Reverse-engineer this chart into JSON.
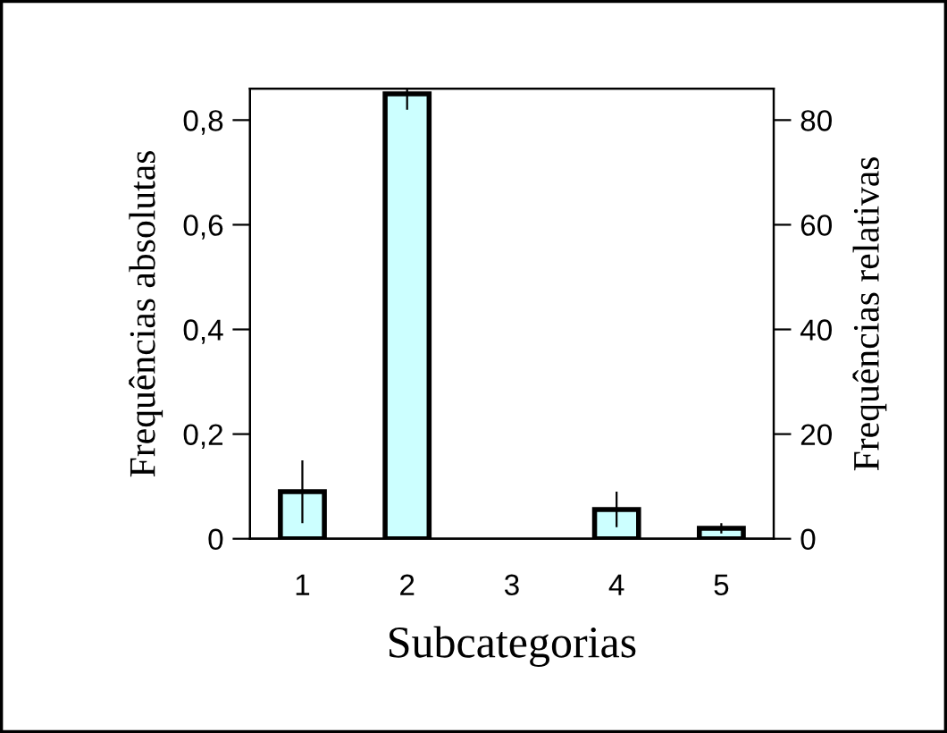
{
  "chart_data": {
    "type": "bar",
    "xlabel": "Subcategorias",
    "ylabel": "Frequências absolutas",
    "y2label": "Frequências relativas",
    "categories": [
      "1",
      "2",
      "3",
      "4",
      "5"
    ],
    "series": [
      {
        "color": "#ccffff",
        "values": [
          0.09,
          0.85,
          0,
          0.056,
          0.02
        ],
        "errors": [
          0.06,
          0.03,
          null,
          0.034,
          0.01
        ]
      }
    ],
    "ylim": [
      0,
      0.86
    ],
    "yticks": [
      {
        "value": 0,
        "label": "0"
      },
      {
        "value": 0.2,
        "label": "0,2"
      },
      {
        "value": 0.4,
        "label": "0,4"
      },
      {
        "value": 0.6,
        "label": "0,6"
      },
      {
        "value": 0.8,
        "label": "0,8"
      }
    ],
    "y2lim": [
      0,
      86
    ],
    "y2ticks": [
      0,
      20,
      40,
      60,
      80
    ],
    "grid": false,
    "legend": false
  }
}
